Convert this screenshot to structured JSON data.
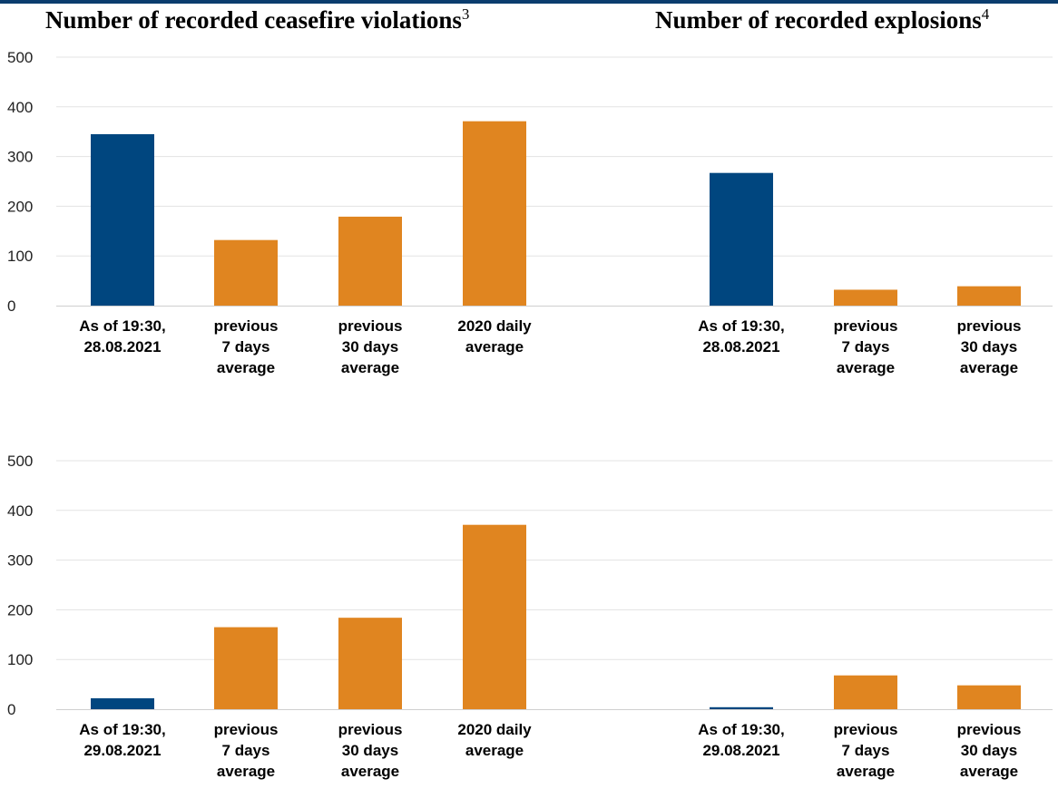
{
  "titles": {
    "left": "Number of recorded ceasefire violations",
    "left_footnote": "3",
    "right": "Number of recorded explosions",
    "right_footnote": "4"
  },
  "colors": {
    "current": "#00467f",
    "average": "#e08520"
  },
  "chart_data": [
    {
      "type": "bar",
      "title": "Number of recorded ceasefire violations",
      "ylim": [
        0,
        500
      ],
      "yticks": [
        0,
        100,
        200,
        300,
        400,
        500
      ],
      "categories": [
        [
          "As of 19:30,",
          "28.08.2021"
        ],
        [
          "previous",
          "7 days",
          "average"
        ],
        [
          "previous",
          "30 days",
          "average"
        ],
        [
          "2020 daily",
          "average"
        ]
      ],
      "values": [
        345,
        132,
        179,
        371
      ]
    },
    {
      "type": "bar",
      "title": "Number of recorded explosions",
      "ylim": [
        0,
        500
      ],
      "yticks": [
        0,
        100,
        200,
        300,
        400,
        500
      ],
      "categories": [
        [
          "As of 19:30,",
          "28.08.2021"
        ],
        [
          "previous",
          "7 days",
          "average"
        ],
        [
          "previous",
          "30 days",
          "average"
        ]
      ],
      "values": [
        267,
        32,
        39
      ]
    },
    {
      "type": "bar",
      "title": "Number of recorded ceasefire violations",
      "ylim": [
        0,
        500
      ],
      "yticks": [
        0,
        100,
        200,
        300,
        400,
        500
      ],
      "categories": [
        [
          "As of 19:30,",
          "29.08.2021"
        ],
        [
          "previous",
          "7 days",
          "average"
        ],
        [
          "previous",
          "30 days",
          "average"
        ],
        [
          "2020 daily",
          "average"
        ]
      ],
      "values": [
        22,
        165,
        184,
        371
      ]
    },
    {
      "type": "bar",
      "title": "Number of recorded explosions",
      "ylim": [
        0,
        500
      ],
      "yticks": [
        0,
        100,
        200,
        300,
        400,
        500
      ],
      "categories": [
        [
          "As of 19:30,",
          "29.08.2021"
        ],
        [
          "previous",
          "7 days",
          "average"
        ],
        [
          "previous",
          "30 days",
          "average"
        ]
      ],
      "values": [
        4,
        68,
        48
      ]
    }
  ]
}
